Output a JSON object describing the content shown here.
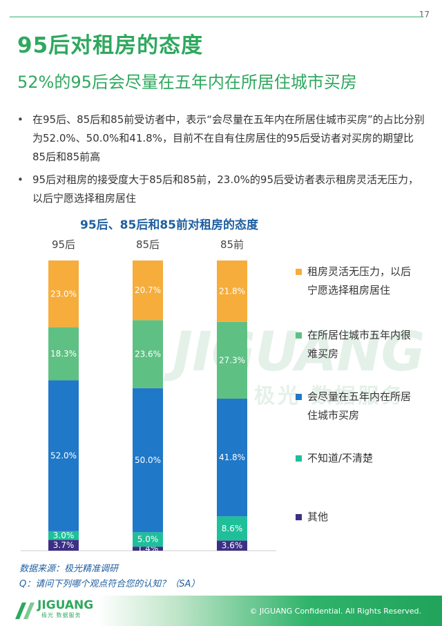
{
  "page_number": "17",
  "title": "95后对租房的态度",
  "subtitle": "52%的95后会尽量在五年内在所居住城市买房",
  "bullets": [
    "在95后、85后和85前受访者中，表示“会尽量在五年内在所居住城市买房”的占比分别为52.0%、50.0%和41.8%，目前不在自有住房居住的95后受访者对买房的期望比85后和85前高",
    "95后对租房的接受度大于85后和85前，23.0%的95后受访者表示租房灵活无压力，以后宁愿选择租房居住"
  ],
  "watermark": {
    "main": "JIGUANG",
    "sub": "极光 数据服务"
  },
  "chart_data": {
    "type": "bar",
    "stacked": true,
    "title": "95后、85后和85前对租房的态度",
    "categories": [
      "95后",
      "85后",
      "85前"
    ],
    "ylim": [
      0,
      100
    ],
    "series": [
      {
        "name": "其他",
        "values": [
          3.7,
          1.4,
          3.6
        ],
        "labels": [
          "3.7%",
          "1.4%",
          "3.6%"
        ],
        "color": "#3e2f86",
        "label_color": "#ffffff"
      },
      {
        "name": "不知道/不清楚",
        "values": [
          3.0,
          5.0,
          8.6
        ],
        "labels": [
          "3.0%",
          "5.0%",
          "8.6%"
        ],
        "color": "#1fbf9a",
        "label_color": "#ffffff"
      },
      {
        "name": "会尽量在五年内在所居住城市买房",
        "values": [
          52.0,
          50.0,
          41.8
        ],
        "labels": [
          "52.0%",
          "50.0%",
          "41.8%"
        ],
        "color": "#1f78c8",
        "label_color": "#ffffff"
      },
      {
        "name": "在所居住城市五年内很难买房",
        "values": [
          18.3,
          23.6,
          27.3
        ],
        "labels": [
          "18.3%",
          "23.6%",
          "27.3%"
        ],
        "color": "#5fc084",
        "label_color": "#ffffff"
      },
      {
        "name": "租房灵活无压力，以后宁愿选择租房居住",
        "values": [
          23.0,
          20.7,
          21.8
        ],
        "labels": [
          "23.0%",
          "20.7%",
          "21.8%"
        ],
        "color": "#f6ad3c",
        "label_color": "#ffffff"
      }
    ],
    "legend": {
      "position": "right",
      "items": [
        {
          "lines": [
            "租房灵活无压力，以后",
            "宁愿选择租房居住"
          ],
          "color": "#f6ad3c"
        },
        {
          "lines": [
            "在所居住城市五年内很",
            "难买房"
          ],
          "color": "#5fc084"
        },
        {
          "lines": [
            "会尽量在五年内在所居",
            "住城市买房"
          ],
          "color": "#1f78c8"
        },
        {
          "lines": [
            "不知道/不清楚"
          ],
          "color": "#1fbf9a"
        },
        {
          "lines": [
            "其他"
          ],
          "color": "#3e2f86"
        }
      ]
    }
  },
  "source": {
    "line1": "数据来源：极光精准调研",
    "line2": "Q：请问下列哪个观点符合您的认知？（SA）"
  },
  "footer": {
    "logo_text": "JIGUANG",
    "logo_sub": "极光 数据服务",
    "copyright": "© JIGUANG  Confidential. All Rights Reserved."
  }
}
